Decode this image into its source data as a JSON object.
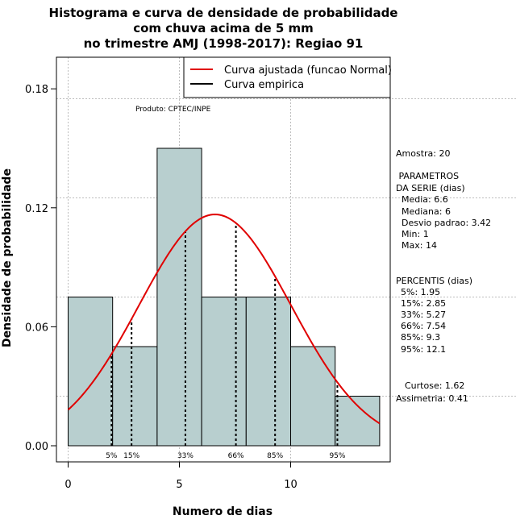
{
  "chart_data": {
    "type": "bar",
    "title_lines": [
      "Histograma e curva de densidade de probabilidade",
      "com chuva acima de 5 mm",
      "no trimestre AMJ (1998-2017): Regiao 91"
    ],
    "xlabel": "Numero de dias",
    "ylabel": "Densidade de probabilidade",
    "xlim": [
      -0.5,
      14.5
    ],
    "ylim": [
      0,
      0.2
    ],
    "x_ticks": [
      0,
      5,
      10
    ],
    "x_tick_labels": [
      "0",
      "5",
      "10"
    ],
    "y_ticks": [
      0.0,
      0.06,
      0.12,
      0.18
    ],
    "y_tick_labels": [
      "0.00",
      "0.06",
      "0.12",
      "0.18"
    ],
    "grid": true,
    "bins": [
      {
        "start": 0,
        "end": 2,
        "density": 0.075
      },
      {
        "start": 2,
        "end": 4,
        "density": 0.05
      },
      {
        "start": 4,
        "end": 6,
        "density": 0.15
      },
      {
        "start": 6,
        "end": 8,
        "density": 0.075
      },
      {
        "start": 8,
        "end": 10,
        "density": 0.075
      },
      {
        "start": 10,
        "end": 12,
        "density": 0.05
      },
      {
        "start": 12,
        "end": 14,
        "density": 0.025
      }
    ],
    "bar_color": "#b8cfcf",
    "normal_curve": {
      "mean": 6.6,
      "sd": 3.42,
      "x_from": 0,
      "x_to": 14,
      "color": "#e00000"
    },
    "percentiles": [
      {
        "label": "5%",
        "value": 1.95
      },
      {
        "label": "15%",
        "value": 2.85
      },
      {
        "label": "33%",
        "value": 5.27
      },
      {
        "label": "66%",
        "value": 7.54
      },
      {
        "label": "85%",
        "value": 9.3
      },
      {
        "label": "95%",
        "value": 12.1
      }
    ],
    "legend": {
      "placement": "top-right",
      "entries": [
        {
          "label": "Curva ajustada (funcao Normal)",
          "color": "#e00000"
        },
        {
          "label": "Curva empirica",
          "color": "#000000"
        }
      ]
    },
    "annotation": "Produto: CPTEC/INPE"
  },
  "side_panel": {
    "amostra": "Amostra: 20",
    "parametros_title": " PARAMETROS",
    "parametros_sub": "DA SERIE (dias)",
    "parametros": [
      "Media: 6.6",
      "Mediana: 6",
      "Desvio padrao: 3.42",
      "Min: 1",
      "Max: 14"
    ],
    "percentis_title": "PERCENTIS (dias)",
    "percentis": [
      "5%: 1.95",
      "15%: 2.85",
      "33%: 5.27",
      "66%: 7.54",
      "85%: 9.3",
      "95%: 12.1"
    ],
    "curtose": "Curtose: 1.62",
    "assimetria": "Assimetria: 0.41"
  }
}
